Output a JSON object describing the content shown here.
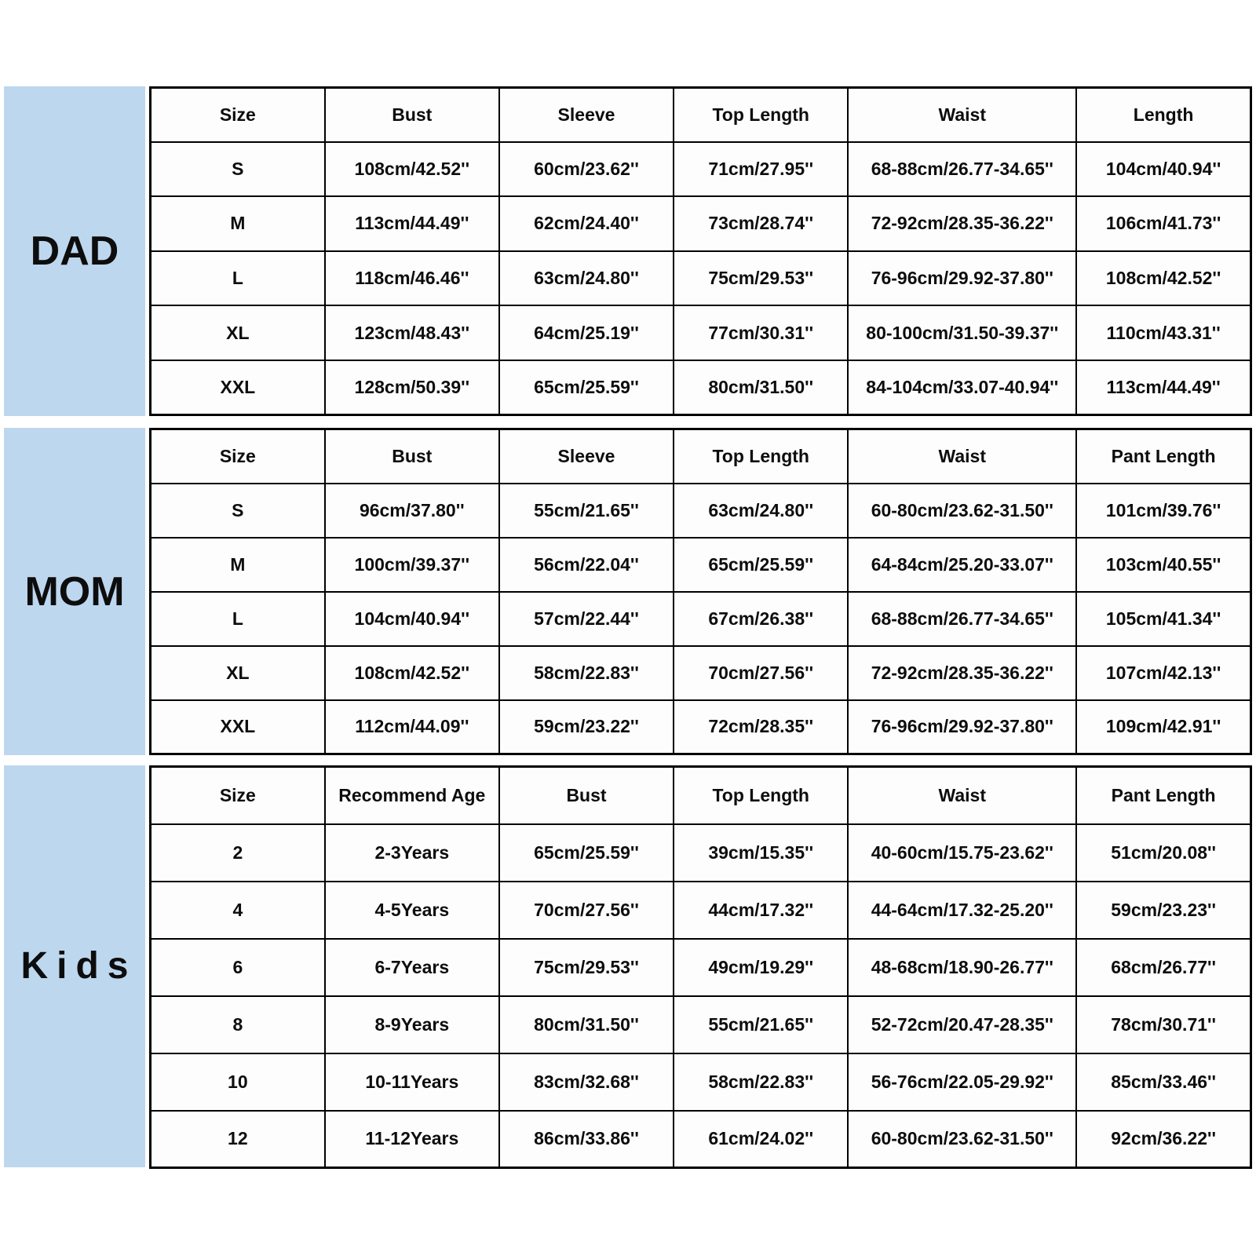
{
  "chart_data": [
    {
      "type": "table",
      "label": "DAD",
      "headers": [
        "Size",
        "Bust",
        "Sleeve",
        "Top Length",
        "Waist",
        "Length"
      ],
      "rows": [
        [
          "S",
          "108cm/42.52''",
          "60cm/23.62''",
          "71cm/27.95''",
          "68-88cm/26.77-34.65''",
          "104cm/40.94''"
        ],
        [
          "M",
          "113cm/44.49''",
          "62cm/24.40''",
          "73cm/28.74''",
          "72-92cm/28.35-36.22''",
          "106cm/41.73''"
        ],
        [
          "L",
          "118cm/46.46''",
          "63cm/24.80''",
          "75cm/29.53''",
          "76-96cm/29.92-37.80''",
          "108cm/42.52''"
        ],
        [
          "XL",
          "123cm/48.43''",
          "64cm/25.19''",
          "77cm/30.31''",
          "80-100cm/31.50-39.37''",
          "110cm/43.31''"
        ],
        [
          "XXL",
          "128cm/50.39''",
          "65cm/25.59''",
          "80cm/31.50''",
          "84-104cm/33.07-40.94''",
          "113cm/44.49''"
        ]
      ]
    },
    {
      "type": "table",
      "label": "MOM",
      "headers": [
        "Size",
        "Bust",
        "Sleeve",
        "Top Length",
        "Waist",
        "Pant Length"
      ],
      "rows": [
        [
          "S",
          "96cm/37.80''",
          "55cm/21.65''",
          "63cm/24.80''",
          "60-80cm/23.62-31.50''",
          "101cm/39.76''"
        ],
        [
          "M",
          "100cm/39.37''",
          "56cm/22.04''",
          "65cm/25.59''",
          "64-84cm/25.20-33.07''",
          "103cm/40.55''"
        ],
        [
          "L",
          "104cm/40.94''",
          "57cm/22.44''",
          "67cm/26.38''",
          "68-88cm/26.77-34.65''",
          "105cm/41.34''"
        ],
        [
          "XL",
          "108cm/42.52''",
          "58cm/22.83''",
          "70cm/27.56''",
          "72-92cm/28.35-36.22''",
          "107cm/42.13''"
        ],
        [
          "XXL",
          "112cm/44.09''",
          "59cm/23.22''",
          "72cm/28.35''",
          "76-96cm/29.92-37.80''",
          "109cm/42.91''"
        ]
      ]
    },
    {
      "type": "table",
      "label": "Kids",
      "headers": [
        "Size",
        "Recommend Age",
        "Bust",
        "Top Length",
        "Waist",
        "Pant Length"
      ],
      "rows": [
        [
          "2",
          "2-3Years",
          "65cm/25.59''",
          "39cm/15.35''",
          "40-60cm/15.75-23.62''",
          "51cm/20.08''"
        ],
        [
          "4",
          "4-5Years",
          "70cm/27.56''",
          "44cm/17.32''",
          "44-64cm/17.32-25.20''",
          "59cm/23.23''"
        ],
        [
          "6",
          "6-7Years",
          "75cm/29.53''",
          "49cm/19.29''",
          "48-68cm/18.90-26.77''",
          "68cm/26.77''"
        ],
        [
          "8",
          "8-9Years",
          "80cm/31.50''",
          "55cm/21.65''",
          "52-72cm/20.47-28.35''",
          "78cm/30.71''"
        ],
        [
          "10",
          "10-11Years",
          "83cm/32.68''",
          "58cm/22.83''",
          "56-76cm/22.05-29.92''",
          "85cm/33.46''"
        ],
        [
          "12",
          "11-12Years",
          "86cm/33.86''",
          "61cm/24.02''",
          "60-80cm/23.62-31.50''",
          "92cm/36.22''"
        ]
      ]
    }
  ],
  "colors": {
    "label_panel_bg": "#BDD7EE",
    "grid_line": "#000000",
    "text": "#0d0d0d",
    "background": "#ffffff"
  }
}
